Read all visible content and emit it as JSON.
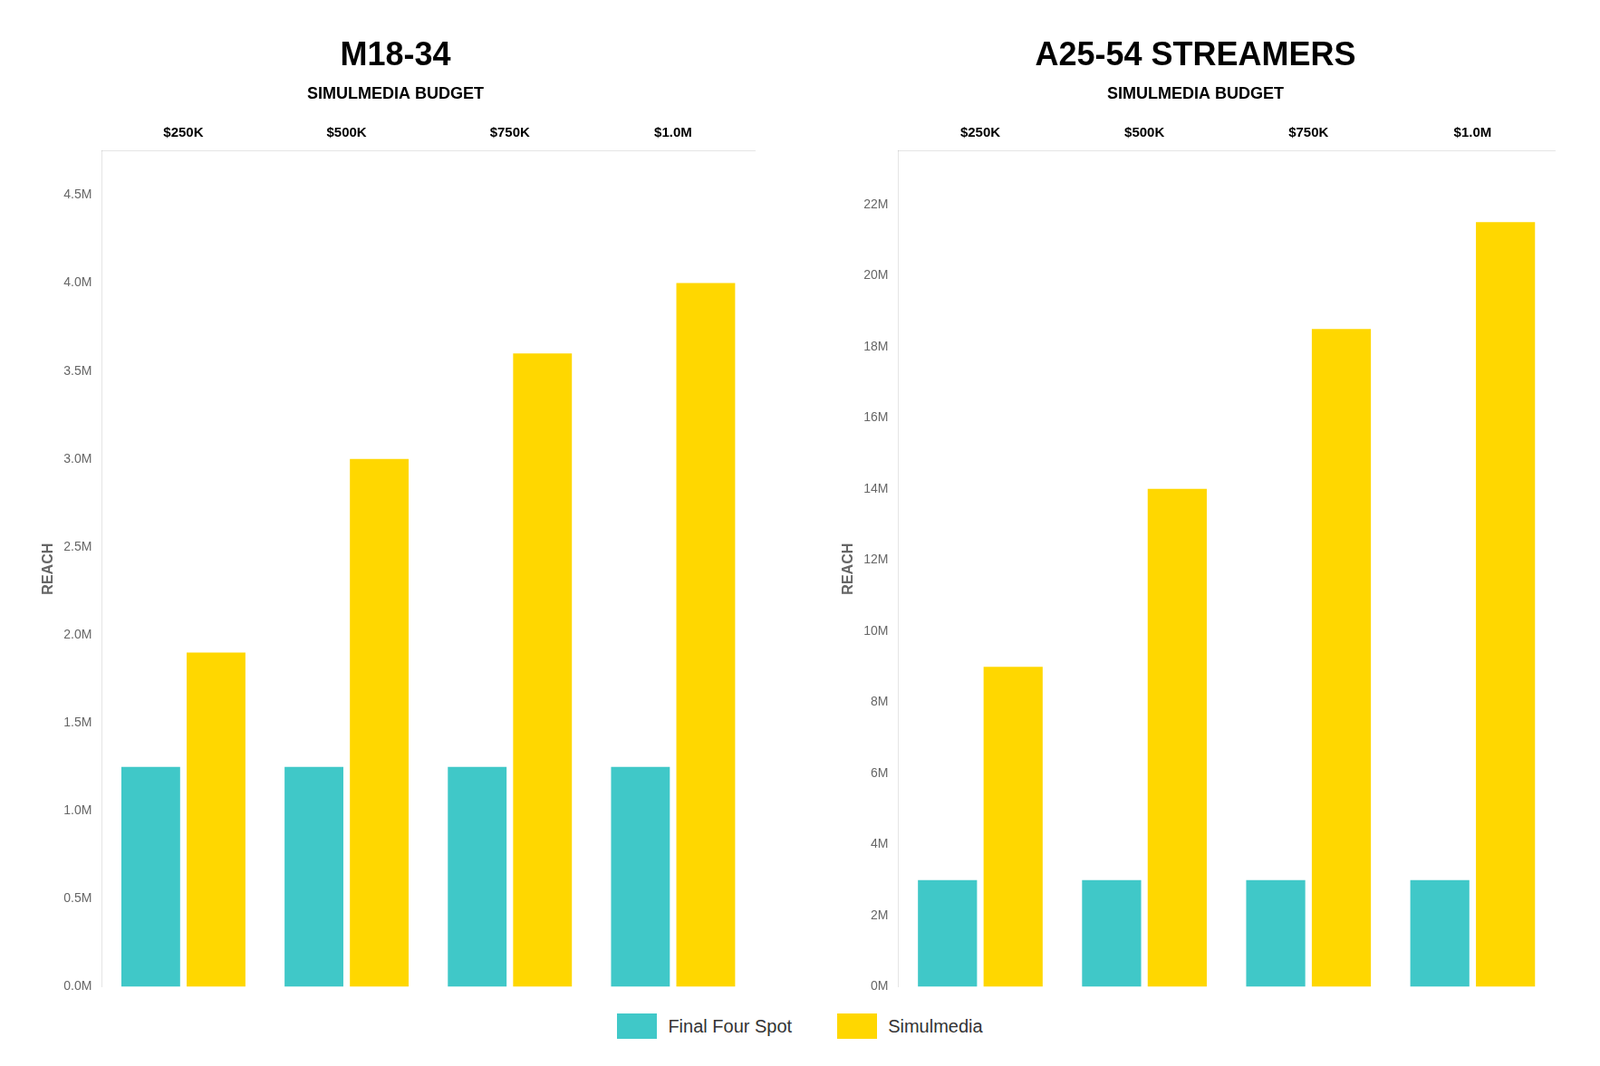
{
  "chart_data": [
    {
      "type": "bar",
      "title": "M18-34",
      "subtitle": "SIMULMEDIA BUDGET",
      "categories": [
        "$250K",
        "$500K",
        "$750K",
        "$1.0M"
      ],
      "series": [
        {
          "name": "Final Four Spot",
          "color": "#40C8C8",
          "values": [
            1.25,
            1.25,
            1.25,
            1.25
          ]
        },
        {
          "name": "Simulmedia",
          "color": "#FFD700",
          "values": [
            1.9,
            3.0,
            3.6,
            4.0
          ]
        }
      ],
      "ylabel": "REACH",
      "ylim": [
        0,
        4.75
      ],
      "yticks": [
        {
          "value": 0.0,
          "label": "0.0M"
        },
        {
          "value": 0.5,
          "label": "0.5M"
        },
        {
          "value": 1.0,
          "label": "1.0M"
        },
        {
          "value": 1.5,
          "label": "1.5M"
        },
        {
          "value": 2.0,
          "label": "2.0M"
        },
        {
          "value": 2.5,
          "label": "2.5M"
        },
        {
          "value": 3.0,
          "label": "3.0M"
        },
        {
          "value": 3.5,
          "label": "3.5M"
        },
        {
          "value": 4.0,
          "label": "4.0M"
        },
        {
          "value": 4.5,
          "label": "4.5M"
        }
      ],
      "grid": false,
      "legend": "bottom"
    },
    {
      "type": "bar",
      "title": "A25-54 STREAMERS",
      "subtitle": "SIMULMEDIA BUDGET",
      "categories": [
        "$250K",
        "$500K",
        "$750K",
        "$1.0M"
      ],
      "series": [
        {
          "name": "Final Four Spot",
          "color": "#40C8C8",
          "values": [
            3.0,
            3.0,
            3.0,
            3.0
          ]
        },
        {
          "name": "Simulmedia",
          "color": "#FFD700",
          "values": [
            9.0,
            14.0,
            18.5,
            21.5
          ]
        }
      ],
      "ylabel": "REACH",
      "ylim": [
        0,
        23.5
      ],
      "yticks": [
        {
          "value": 0,
          "label": "0M"
        },
        {
          "value": 2,
          "label": "2M"
        },
        {
          "value": 4,
          "label": "4M"
        },
        {
          "value": 6,
          "label": "6M"
        },
        {
          "value": 8,
          "label": "8M"
        },
        {
          "value": 10,
          "label": "10M"
        },
        {
          "value": 12,
          "label": "12M"
        },
        {
          "value": 14,
          "label": "14M"
        },
        {
          "value": 16,
          "label": "16M"
        },
        {
          "value": 18,
          "label": "18M"
        },
        {
          "value": 20,
          "label": "20M"
        },
        {
          "value": 22,
          "label": "22M"
        }
      ],
      "grid": false,
      "legend": "bottom"
    }
  ]
}
